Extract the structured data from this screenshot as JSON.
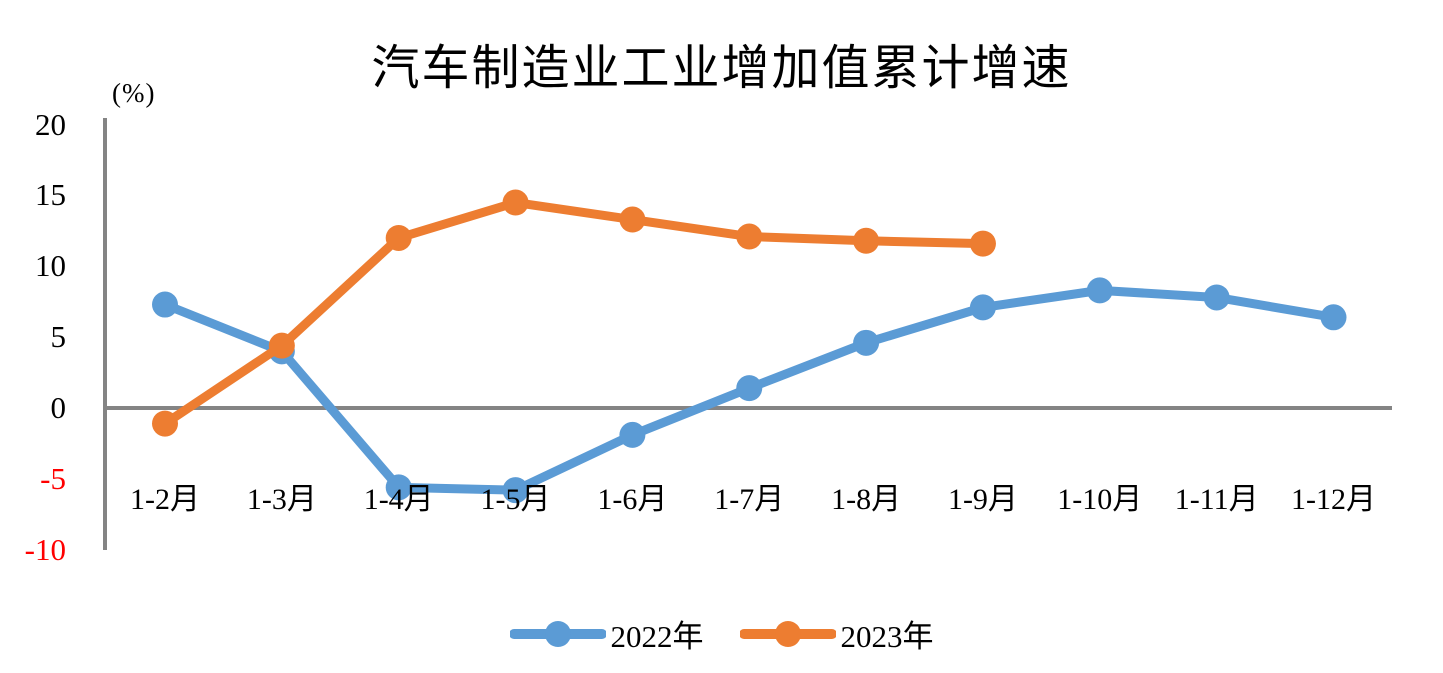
{
  "chart_data": {
    "type": "line",
    "title": "汽车制造业工业增加值累计增速",
    "unit_label": "(%)",
    "xlabel": "",
    "ylabel": "(%)",
    "categories": [
      "1-2月",
      "1-3月",
      "1-4月",
      "1-5月",
      "1-6月",
      "1-7月",
      "1-8月",
      "1-9月",
      "1-10月",
      "1-11月",
      "1-12月"
    ],
    "series": [
      {
        "name": "2022年",
        "color": "#5B9BD5",
        "values": [
          7.3,
          4.0,
          -5.6,
          -5.8,
          -1.9,
          1.4,
          4.6,
          7.1,
          8.3,
          7.8,
          6.4
        ]
      },
      {
        "name": "2023年",
        "color": "#ED7D31",
        "values": [
          -1.1,
          4.4,
          12.0,
          14.5,
          13.3,
          12.1,
          11.8,
          11.6
        ]
      }
    ],
    "y_ticks": [
      20,
      15,
      10,
      5,
      0,
      -5,
      -10
    ],
    "ylim": [
      -10,
      20
    ],
    "grid": false,
    "legend_position": "bottom",
    "axis_color": "#848484",
    "negative_tick_color": "#FF0000",
    "text_color": "#000000"
  }
}
